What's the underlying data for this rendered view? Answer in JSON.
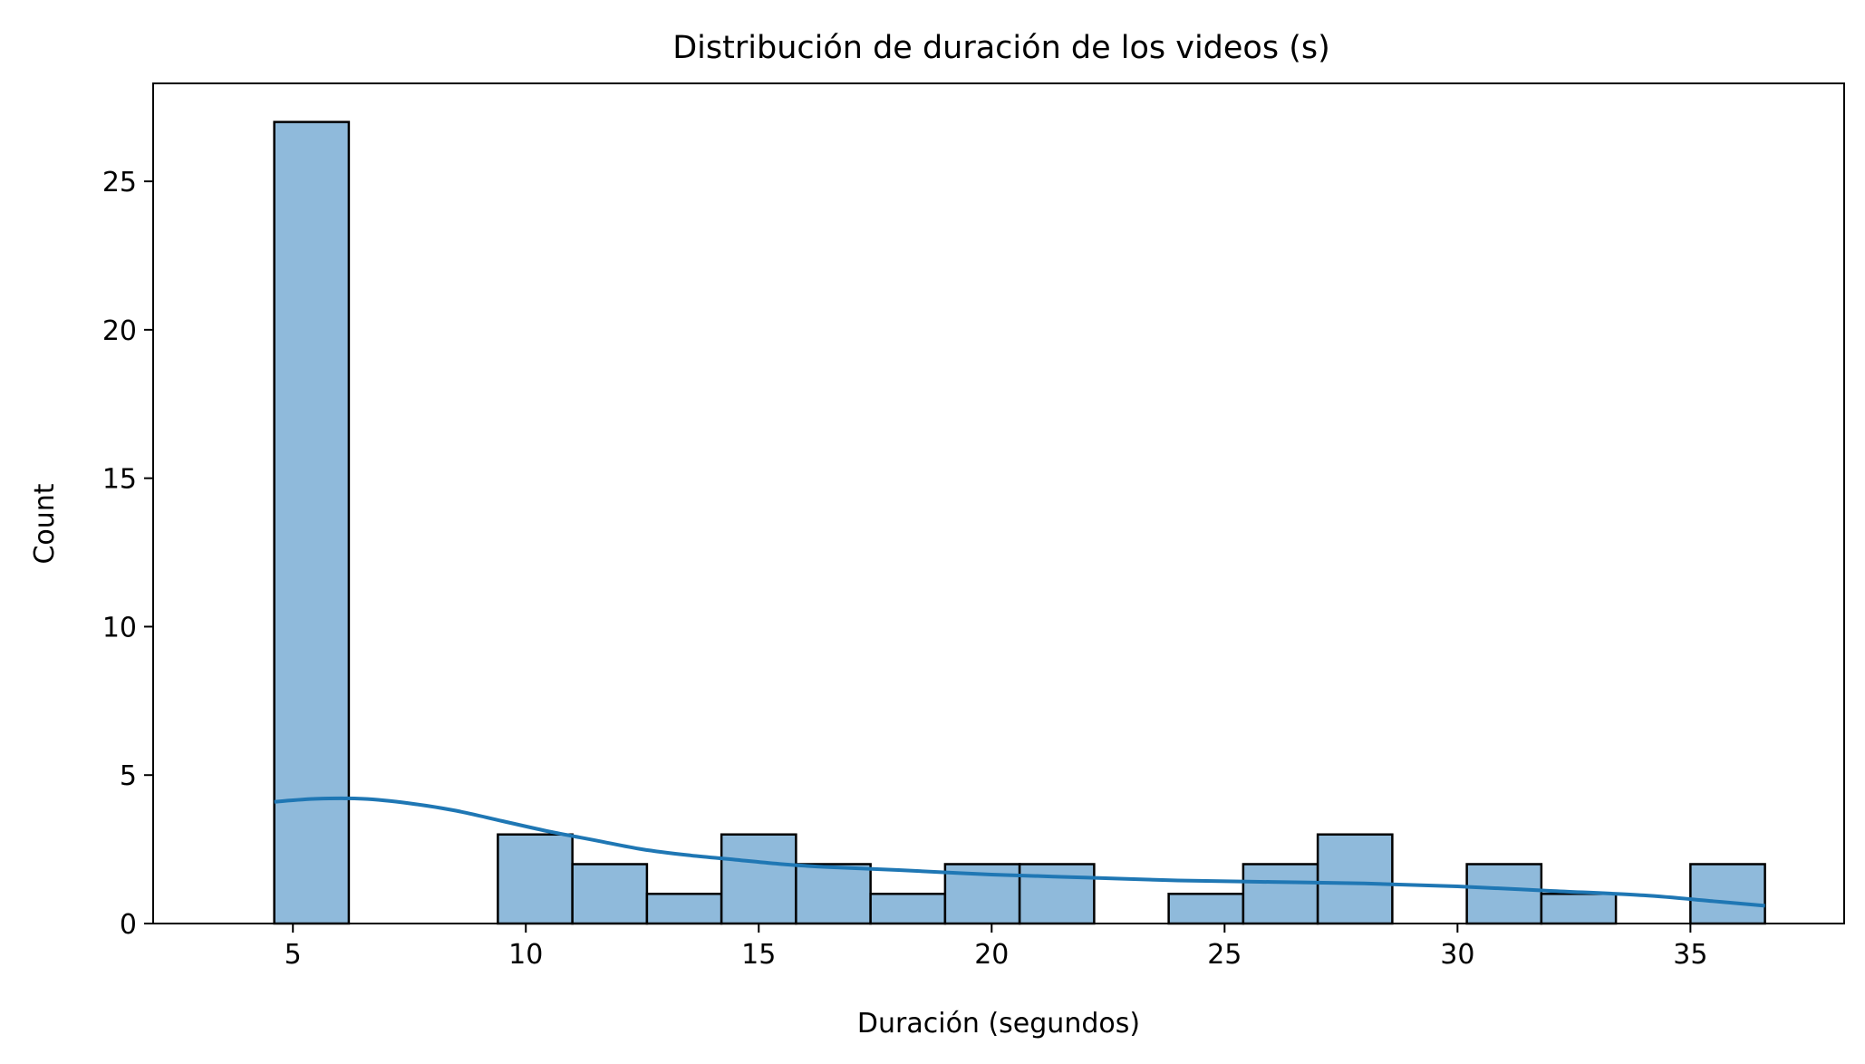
{
  "chart_data": {
    "type": "bar",
    "title": "Distribución de duración de los videos (s)",
    "xlabel": "Duración (segundos)",
    "ylabel": "Count",
    "xlim": [
      2.0,
      38.3
    ],
    "ylim": [
      0,
      28.3
    ],
    "xticks": [
      5,
      10,
      15,
      20,
      25,
      30,
      35
    ],
    "yticks": [
      0,
      5,
      10,
      15,
      20,
      25
    ],
    "bin_edges": [
      4.6,
      6.2,
      7.8,
      9.4,
      11.0,
      12.6,
      14.2,
      15.8,
      17.4,
      19.0,
      20.6,
      22.2,
      23.8,
      25.4,
      27.0,
      28.6,
      30.2,
      31.8,
      33.4,
      35.0,
      36.6
    ],
    "counts": [
      27,
      0,
      0,
      3,
      2,
      1,
      3,
      2,
      1,
      2,
      2,
      0,
      1,
      2,
      3,
      0,
      2,
      1,
      0,
      2
    ],
    "kde": {
      "x": [
        4.6,
        5.5,
        6.5,
        7.5,
        8.5,
        9.5,
        10.5,
        11.5,
        12.5,
        13.5,
        14.5,
        15.5,
        16.5,
        18,
        20,
        22,
        24,
        26,
        28,
        30,
        32,
        34,
        35.5,
        36.6
      ],
      "y": [
        4.1,
        4.2,
        4.2,
        4.05,
        3.8,
        3.45,
        3.1,
        2.8,
        2.5,
        2.3,
        2.15,
        2.0,
        1.9,
        1.8,
        1.65,
        1.55,
        1.45,
        1.4,
        1.35,
        1.25,
        1.1,
        0.95,
        0.75,
        0.6
      ]
    },
    "colors": {
      "bar_fill": "#8fbadb",
      "bar_edge": "#000000",
      "kde_line": "#1f77b4"
    },
    "grid": false,
    "legend": "none"
  }
}
